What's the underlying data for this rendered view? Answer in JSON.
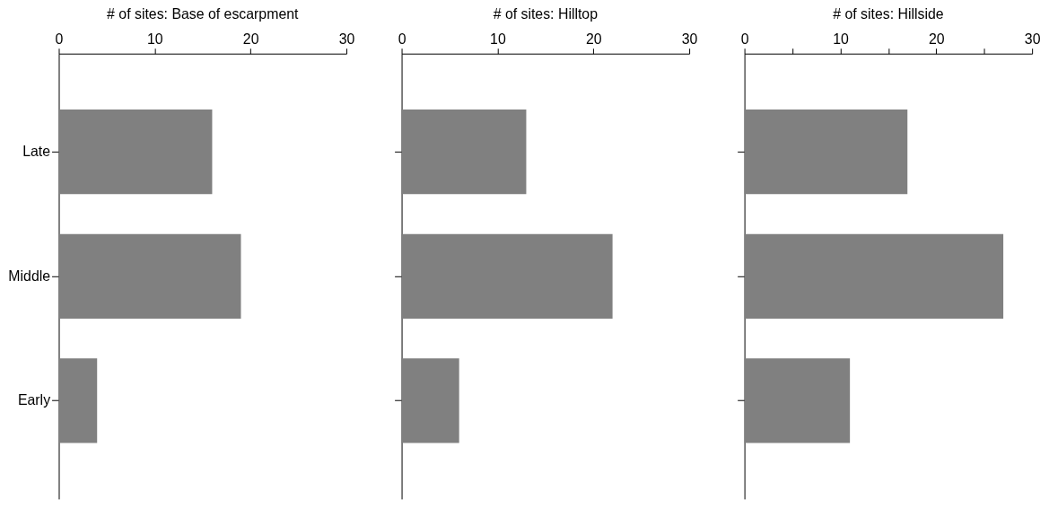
{
  "chart_data": [
    {
      "type": "bar",
      "orientation": "horizontal",
      "title": "# of sites: Base of escarpment",
      "categories": [
        "Late",
        "Middle",
        "Early"
      ],
      "values": [
        16,
        19,
        4
      ],
      "color": "#808080",
      "xlim": [
        0,
        30
      ],
      "xticks": [
        0,
        10,
        20,
        30
      ],
      "grid": false
    },
    {
      "type": "bar",
      "orientation": "horizontal",
      "title": "# of sites: Hilltop",
      "categories": [
        null,
        null,
        null
      ],
      "values": [
        13,
        22,
        6
      ],
      "color": "#808080",
      "xlim": [
        0,
        30
      ],
      "xticks": [
        0,
        10,
        20,
        30
      ],
      "grid": false,
      "tick_labels": "x"
    },
    {
      "type": "bar",
      "orientation": "horizontal",
      "title": "# of sites: Hillside",
      "categories": [
        null,
        null,
        null
      ],
      "values": [
        17,
        27,
        11
      ],
      "color": "#808080",
      "xlim": [
        0,
        30
      ],
      "xticks": [
        0,
        {
          "value": 5,
          "label": null
        },
        10,
        {
          "value": 15,
          "label": null
        },
        20,
        {
          "value": 25,
          "label": null
        },
        30
      ],
      "grid": false,
      "tick_labels": "x"
    }
  ]
}
